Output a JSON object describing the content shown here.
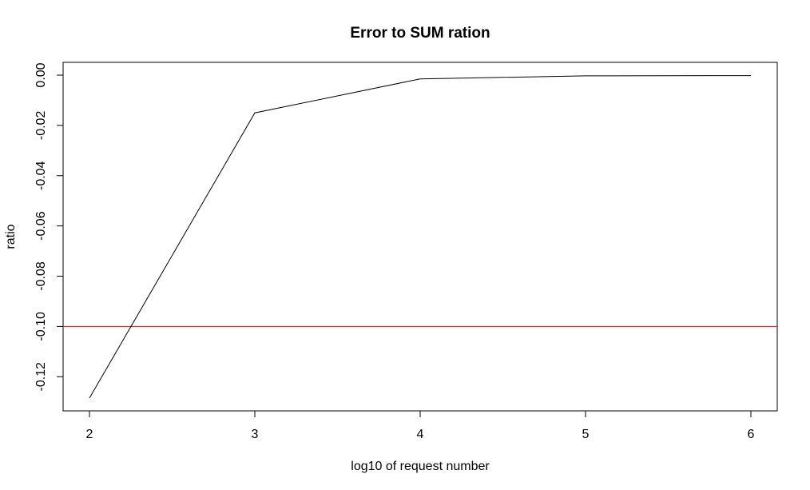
{
  "chart_data": {
    "type": "line",
    "title": "Error to SUM ration",
    "xlabel": "log10 of request number",
    "ylabel": "ratio",
    "xlim": [
      2,
      6
    ],
    "ylim": [
      -0.1285,
      0.0
    ],
    "x_ticks": [
      2,
      3,
      4,
      5,
      6
    ],
    "x_tick_labels": [
      "2",
      "3",
      "4",
      "5",
      "6"
    ],
    "y_ticks": [
      0.0,
      -0.02,
      -0.04,
      -0.06,
      -0.08,
      -0.1,
      -0.12
    ],
    "y_tick_labels": [
      "0.00",
      "-0.02",
      "-0.04",
      "-0.06",
      "-0.08",
      "-0.10",
      "-0.12"
    ],
    "grid": false,
    "series": [
      {
        "x": [
          2,
          3,
          4,
          5,
          6
        ],
        "values": [
          -0.1285,
          -0.015,
          -0.0015,
          -0.0003,
          -0.0002
        ],
        "color": "#000000"
      }
    ],
    "reference_line": {
      "y": -0.1,
      "color": "#ff0000"
    }
  }
}
